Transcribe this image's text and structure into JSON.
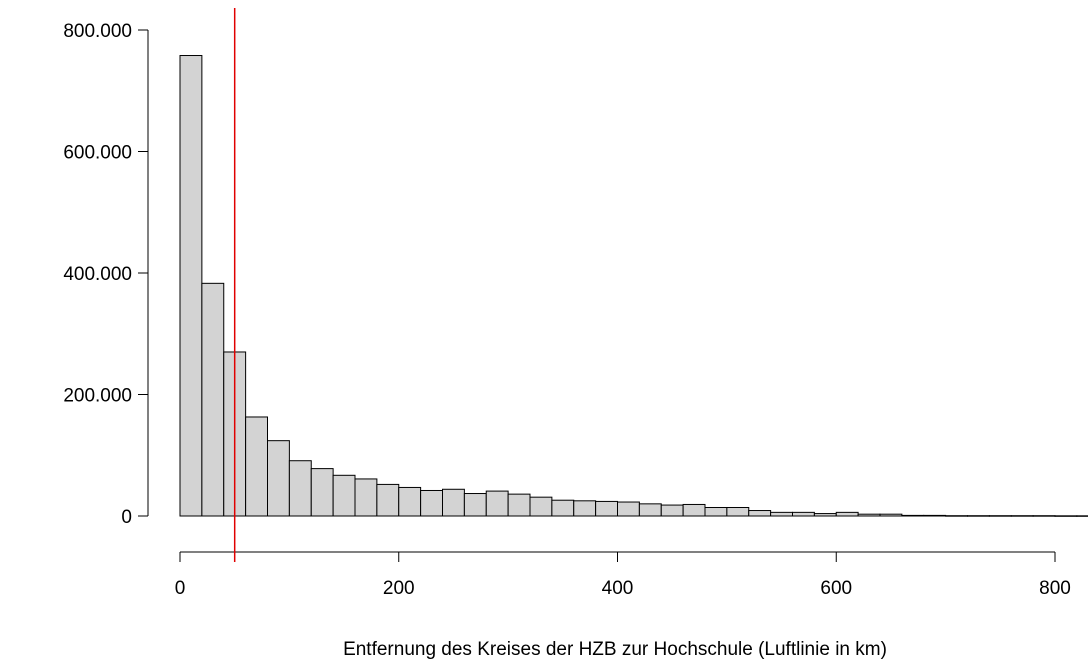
{
  "chart_data": {
    "type": "bar",
    "xlabel": "Entfernung des Kreises der HZB zur Hochschule (Luftlinie in km)",
    "ylabel": "",
    "bin_width": 20,
    "bin_start": 0,
    "values": [
      758000,
      383000,
      270000,
      163000,
      124000,
      91000,
      78000,
      67000,
      61000,
      52000,
      47000,
      42000,
      44000,
      37000,
      41000,
      36000,
      31000,
      26000,
      25000,
      24000,
      23000,
      20000,
      18000,
      19000,
      14000,
      14000,
      9000,
      6000,
      6000,
      4000,
      6000,
      3000,
      3000,
      1000,
      1000,
      500,
      500,
      500,
      500,
      500,
      300,
      300,
      300,
      200,
      200
    ],
    "xlim": [
      0,
      800
    ],
    "ylim": [
      0,
      800000
    ],
    "x_ticks": [
      0,
      200,
      400,
      600,
      800
    ],
    "x_tick_labels": [
      "0",
      "200",
      "400",
      "600",
      "800"
    ],
    "y_ticks": [
      0,
      200000,
      400000,
      600000,
      800000
    ],
    "y_tick_labels": [
      "0",
      "200.000",
      "400.000",
      "600.000",
      "800.000"
    ],
    "reference_line": {
      "x": 50,
      "color": "#e00000"
    },
    "bar_fill": "#d3d3d3",
    "bar_stroke": "#000000",
    "grid": false
  }
}
